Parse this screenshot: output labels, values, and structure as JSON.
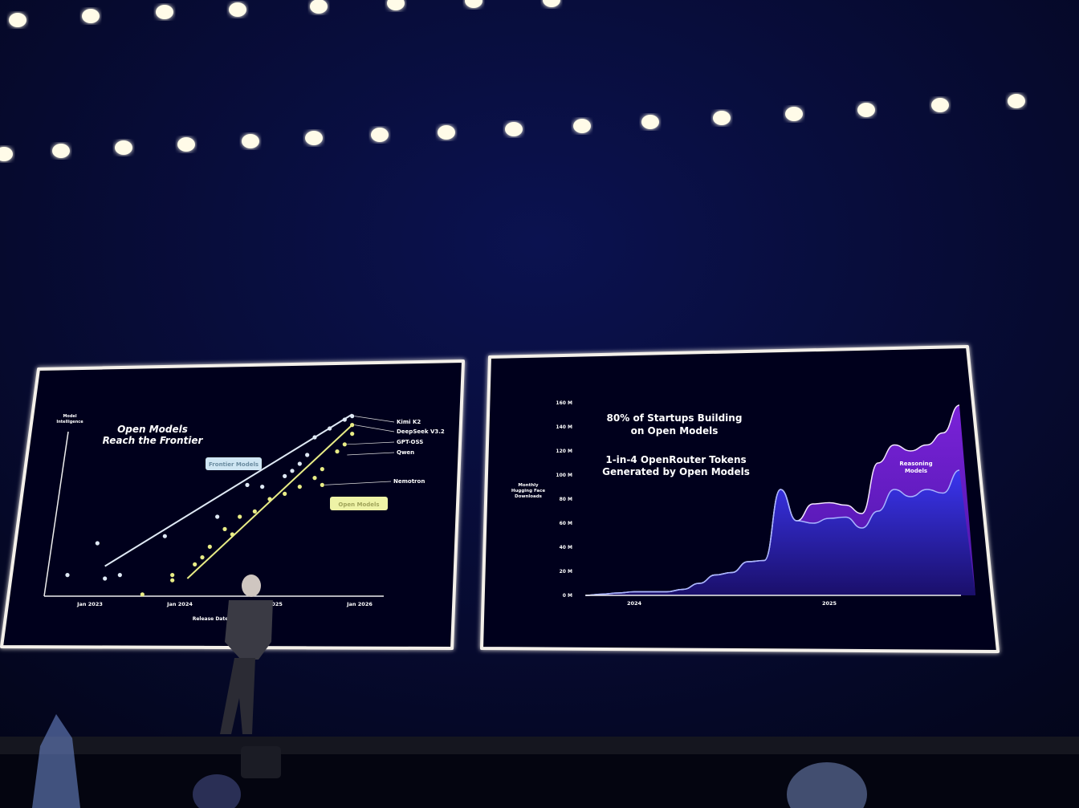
{
  "colors": {
    "background": "#070a2e",
    "screen_border": "#f4f0ea",
    "frontier": "#dfe9f5",
    "open": "#e8ec86",
    "base_area": "#3a2ee8",
    "reasoning_area": "#6a1fd0"
  },
  "chart_data": [
    {
      "type": "scatter",
      "title": "Open Models Reach the Frontier",
      "xlabel": "Release Date",
      "ylabel": "Model Intelligence",
      "x_ticks": [
        "Jan 2023",
        "Jan 2024",
        "Jan 2025",
        "Jan 2026"
      ],
      "grid": false,
      "series": [
        {
          "name": "Frontier Models",
          "color": "#dfe9f5",
          "points": [
            [
              "2022-10",
              12
            ],
            [
              "2023-02",
              30
            ],
            [
              "2023-03",
              10
            ],
            [
              "2023-05",
              12
            ],
            [
              "2023-11",
              34
            ],
            [
              "2024-06",
              45
            ],
            [
              "2024-10",
              63
            ],
            [
              "2024-12",
              62
            ],
            [
              "2025-03",
              68
            ],
            [
              "2025-04",
              71
            ],
            [
              "2025-05",
              75
            ],
            [
              "2025-06",
              80
            ],
            [
              "2025-07",
              90
            ],
            [
              "2025-09",
              95
            ],
            [
              "2025-11",
              100
            ],
            [
              "2025-12",
              102
            ]
          ],
          "trend": [
            [
              "2023-03",
              17
            ],
            [
              "2025-12",
              103
            ]
          ]
        },
        {
          "name": "Open Models",
          "color": "#e8ec86",
          "points": [
            [
              "2023-08",
              1
            ],
            [
              "2023-12",
              9
            ],
            [
              "2023-12",
              12
            ],
            [
              "2024-03",
              18
            ],
            [
              "2024-04",
              22
            ],
            [
              "2024-05",
              28
            ],
            [
              "2024-07",
              38
            ],
            [
              "2024-08",
              35
            ],
            [
              "2024-09",
              45
            ],
            [
              "2024-11",
              48
            ],
            [
              "2025-01",
              55
            ],
            [
              "2025-03",
              58
            ],
            [
              "2025-05",
              62
            ],
            [
              "2025-07",
              67
            ],
            [
              "2025-08",
              63
            ],
            [
              "2025-08",
              72
            ],
            [
              "2025-10",
              82
            ],
            [
              "2025-11",
              86
            ],
            [
              "2025-12",
              92
            ],
            [
              "2025-12",
              97
            ]
          ],
          "trend": [
            [
              "2024-02",
              10
            ],
            [
              "2025-12",
              97
            ]
          ]
        }
      ],
      "annotations": [
        {
          "label": "Kimi K2",
          "at": [
            "2025-12",
            102
          ]
        },
        {
          "label": "DeepSeek V3.2",
          "at": [
            "2025-12",
            97
          ]
        },
        {
          "label": "GPT-OSS",
          "at": [
            "2025-11",
            86
          ]
        },
        {
          "label": "Qwen",
          "at": [
            "2025-11",
            80
          ]
        },
        {
          "label": "Nemotron",
          "at": [
            "2025-08",
            63
          ]
        }
      ]
    },
    {
      "type": "area",
      "ylabel": "Monthly Hugging Face Downloads",
      "y_ticks": [
        "0 M",
        "20 M",
        "40 M",
        "60 M",
        "80 M",
        "100 M",
        "120 M",
        "140 M",
        "160 M"
      ],
      "ylim": [
        0,
        160
      ],
      "x_ticks": [
        "2024",
        "2025"
      ],
      "x": [
        "2023-10",
        "2023-11",
        "2023-12",
        "2024-01",
        "2024-02",
        "2024-03",
        "2024-04",
        "2024-05",
        "2024-06",
        "2024-07",
        "2024-08",
        "2024-09",
        "2024-10",
        "2024-11",
        "2024-12",
        "2025-01",
        "2025-02",
        "2025-03",
        "2025-04",
        "2025-05",
        "2025-06",
        "2025-07",
        "2025-08",
        "2025-09"
      ],
      "series": [
        {
          "values": [
            0,
            1,
            2,
            3,
            3,
            3,
            5,
            10,
            17,
            19,
            28,
            29,
            88,
            62,
            60,
            64,
            65,
            56,
            70,
            88,
            82,
            88,
            85,
            104
          ]
        },
        {
          "name": "Reasoning Models",
          "values": [
            0,
            1,
            2,
            3,
            3,
            3,
            5,
            10,
            17,
            19,
            28,
            29,
            88,
            62,
            76,
            77,
            75,
            68,
            110,
            125,
            120,
            125,
            135,
            158
          ]
        }
      ],
      "stacked_total": true,
      "annotations": [
        "80% of Startups Building on Open Models",
        "1-in-4 OpenRouter Tokens Generated by Open Models"
      ]
    }
  ],
  "labels": {
    "left_title_1": "Open Models",
    "left_title_2": "Reach the Frontier",
    "frontier_badge": "Frontier Models",
    "open_badge": "Open Models",
    "y_label_1": "Model",
    "y_label_2": "Intelligence",
    "right_head_1": "80% of Startups Building",
    "right_head_2": "on Open Models",
    "right_head_3": "1-in-4 OpenRouter Tokens",
    "right_head_4": "Generated by Open Models",
    "right_y_1": "Monthly",
    "right_y_2": "Hugging Face",
    "right_y_3": "Downloads",
    "reasoning_1": "Reasoning",
    "reasoning_2": "Models"
  }
}
